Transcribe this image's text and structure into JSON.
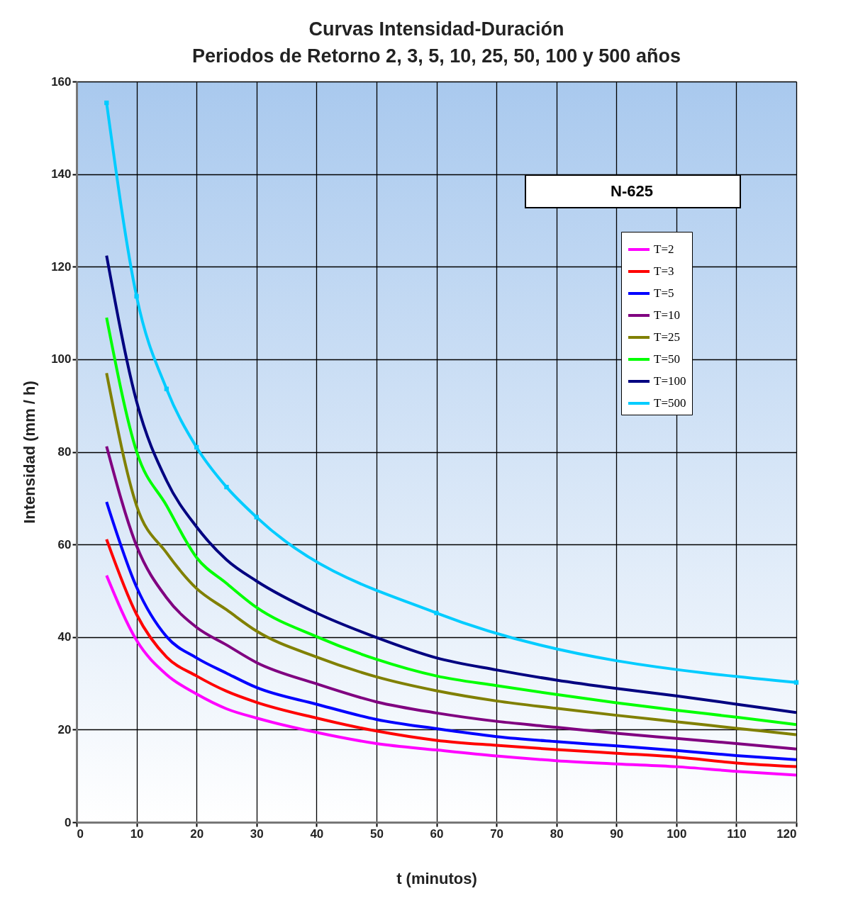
{
  "chart_data": {
    "type": "line",
    "title": [
      "Curvas Intensidad-Duración",
      "Periodos de Retorno 2, 3, 5, 10, 25, 50, 100 y 500 años"
    ],
    "xlabel": "t (minutos)",
    "ylabel": "Intensidad (mm / h)",
    "annotations": [
      "N-625"
    ],
    "x": [
      5,
      10,
      15,
      20,
      25,
      30,
      40,
      50,
      60,
      70,
      80,
      90,
      100,
      110,
      120
    ],
    "xlim": [
      0,
      120
    ],
    "xticks": [
      0,
      10,
      20,
      30,
      40,
      50,
      60,
      70,
      80,
      90,
      100,
      110,
      120
    ],
    "ylim": [
      0,
      160
    ],
    "yticks": [
      0,
      20,
      40,
      60,
      80,
      100,
      120,
      140,
      160
    ],
    "grid": true,
    "legend": "top right",
    "series": [
      {
        "name": "T=2",
        "color": "#ff00ff",
        "values": [
          53.3,
          39.3,
          31.9,
          27.7,
          24.5,
          22.5,
          19.4,
          17.0,
          15.6,
          14.3,
          13.3,
          12.6,
          12.0,
          11.0,
          10.2
        ]
      },
      {
        "name": "T=3",
        "color": "#ff0000",
        "values": [
          61.1,
          44.9,
          35.7,
          31.6,
          28.3,
          25.9,
          22.5,
          19.7,
          17.7,
          16.6,
          15.7,
          14.9,
          14.1,
          12.8,
          12.0
        ]
      },
      {
        "name": "T=5",
        "color": "#0000ff",
        "values": [
          69.2,
          50.8,
          40.1,
          35.5,
          32.2,
          29.1,
          25.5,
          22.2,
          20.2,
          18.5,
          17.4,
          16.5,
          15.5,
          14.4,
          13.5
        ]
      },
      {
        "name": "T=10",
        "color": "#800080",
        "values": [
          81.2,
          59.7,
          48.5,
          42.1,
          38.3,
          34.5,
          29.9,
          26.0,
          23.6,
          21.8,
          20.5,
          19.2,
          18.1,
          17.0,
          15.8
        ]
      },
      {
        "name": "T=25",
        "color": "#808000",
        "values": [
          97.0,
          68.4,
          58.2,
          50.5,
          45.9,
          41.3,
          35.7,
          31.4,
          28.4,
          26.2,
          24.6,
          23.1,
          21.7,
          20.3,
          18.9
        ]
      },
      {
        "name": "T=50",
        "color": "#00ff00",
        "values": [
          109.0,
          80.1,
          68.4,
          57.2,
          51.6,
          46.4,
          40.1,
          35.2,
          31.6,
          29.5,
          27.6,
          25.8,
          24.2,
          22.7,
          21.1
        ]
      },
      {
        "name": "T=100",
        "color": "#000080",
        "values": [
          122.4,
          90.9,
          73.8,
          63.8,
          56.7,
          52.1,
          45.2,
          39.9,
          35.5,
          32.9,
          30.7,
          28.9,
          27.3,
          25.5,
          23.7
        ]
      },
      {
        "name": "T=500",
        "color": "#00ccff",
        "marker": "square",
        "x": [
          5,
          10,
          15,
          20,
          25,
          30,
          60,
          120
        ],
        "values": [
          155.4,
          113.6,
          93.6,
          81.0,
          72.4,
          65.9,
          45.2,
          30.2
        ]
      }
    ]
  }
}
